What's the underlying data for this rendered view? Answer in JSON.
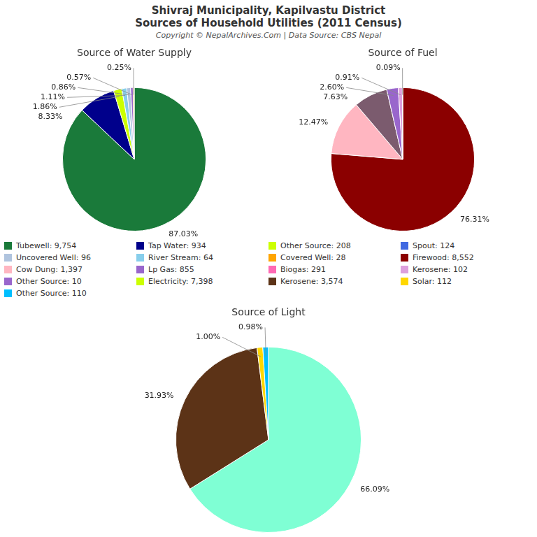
{
  "title": "Shivraj Municipality, Kapilvastu District",
  "subtitle": "Sources of Household Utilities (2011 Census)",
  "annotations": [
    "Copyright © NepalArchives.Com | Data Source: CBS Nepal"
  ],
  "chart_data": [
    {
      "type": "pie",
      "title": "Source of Water Supply",
      "values": [
        87.03,
        8.33,
        1.86,
        1.11,
        0.86,
        0.57,
        0.25
      ],
      "value_labels": [
        "87.03%",
        "8.33%",
        "1.86%",
        "1.11%",
        "0.86%",
        "0.57%",
        "0.25%"
      ],
      "colors": [
        "#1a7a3a",
        "#00008B",
        "#CCFF00",
        "#87CEEB",
        "#B0C4DE",
        "#9966CC",
        "#FFA500"
      ],
      "data_labels": true
    },
    {
      "type": "pie",
      "title": "Source of Fuel",
      "values": [
        76.31,
        12.47,
        7.63,
        2.6,
        0.91,
        0.09
      ],
      "value_labels": [
        "76.31%",
        "12.47%",
        "7.63%",
        "2.60%",
        "0.91%",
        "0.09%"
      ],
      "colors": [
        "#8B0000",
        "#FFB6C1",
        "#7B5B6E",
        "#9966CC",
        "#DDA0DD",
        "#2E6B2E"
      ],
      "data_labels": true
    },
    {
      "type": "pie",
      "title": "Source of Light",
      "values": [
        66.09,
        31.93,
        1.0,
        0.98
      ],
      "value_labels": [
        "66.09%",
        "31.93%",
        "1.00%",
        "0.98%"
      ],
      "colors": [
        "#7FFFD4",
        "#5C3317",
        "#FFD700",
        "#00BFFF"
      ],
      "data_labels": true
    }
  ],
  "legend_entries": [
    [
      {
        "label": "Tubewell: 9,754",
        "color": "#1a7a3a"
      },
      {
        "label": "Uncovered Well: 96",
        "color": "#B0C4DE"
      },
      {
        "label": "Cow Dung: 1,397",
        "color": "#FFB6C1"
      },
      {
        "label": "Other Source: 10",
        "color": "#9966CC"
      },
      {
        "label": "Other Source: 110",
        "color": "#00BFFF"
      }
    ],
    [
      {
        "label": "Tap Water: 934",
        "color": "#00008B"
      },
      {
        "label": "River Stream: 64",
        "color": "#87CEEB"
      },
      {
        "label": "Lp Gas: 855",
        "color": "#9966CC"
      },
      {
        "label": "Electricity: 7,398",
        "color": "#CCFF00"
      }
    ],
    [
      {
        "label": "Other Source: 208",
        "color": "#CCFF00"
      },
      {
        "label": "Covered Well: 28",
        "color": "#FFA500"
      },
      {
        "label": "Biogas: 291",
        "color": "#FF69B4"
      },
      {
        "label": "Kerosene: 3,574",
        "color": "#5C3317"
      }
    ],
    [
      {
        "label": "Spout: 124",
        "color": "#4169E1"
      },
      {
        "label": "Firewood: 8,552",
        "color": "#8B0000"
      },
      {
        "label": "Kerosene: 102",
        "color": "#DDA0DD"
      },
      {
        "label": "Solar: 112",
        "color": "#FFD700"
      }
    ]
  ]
}
